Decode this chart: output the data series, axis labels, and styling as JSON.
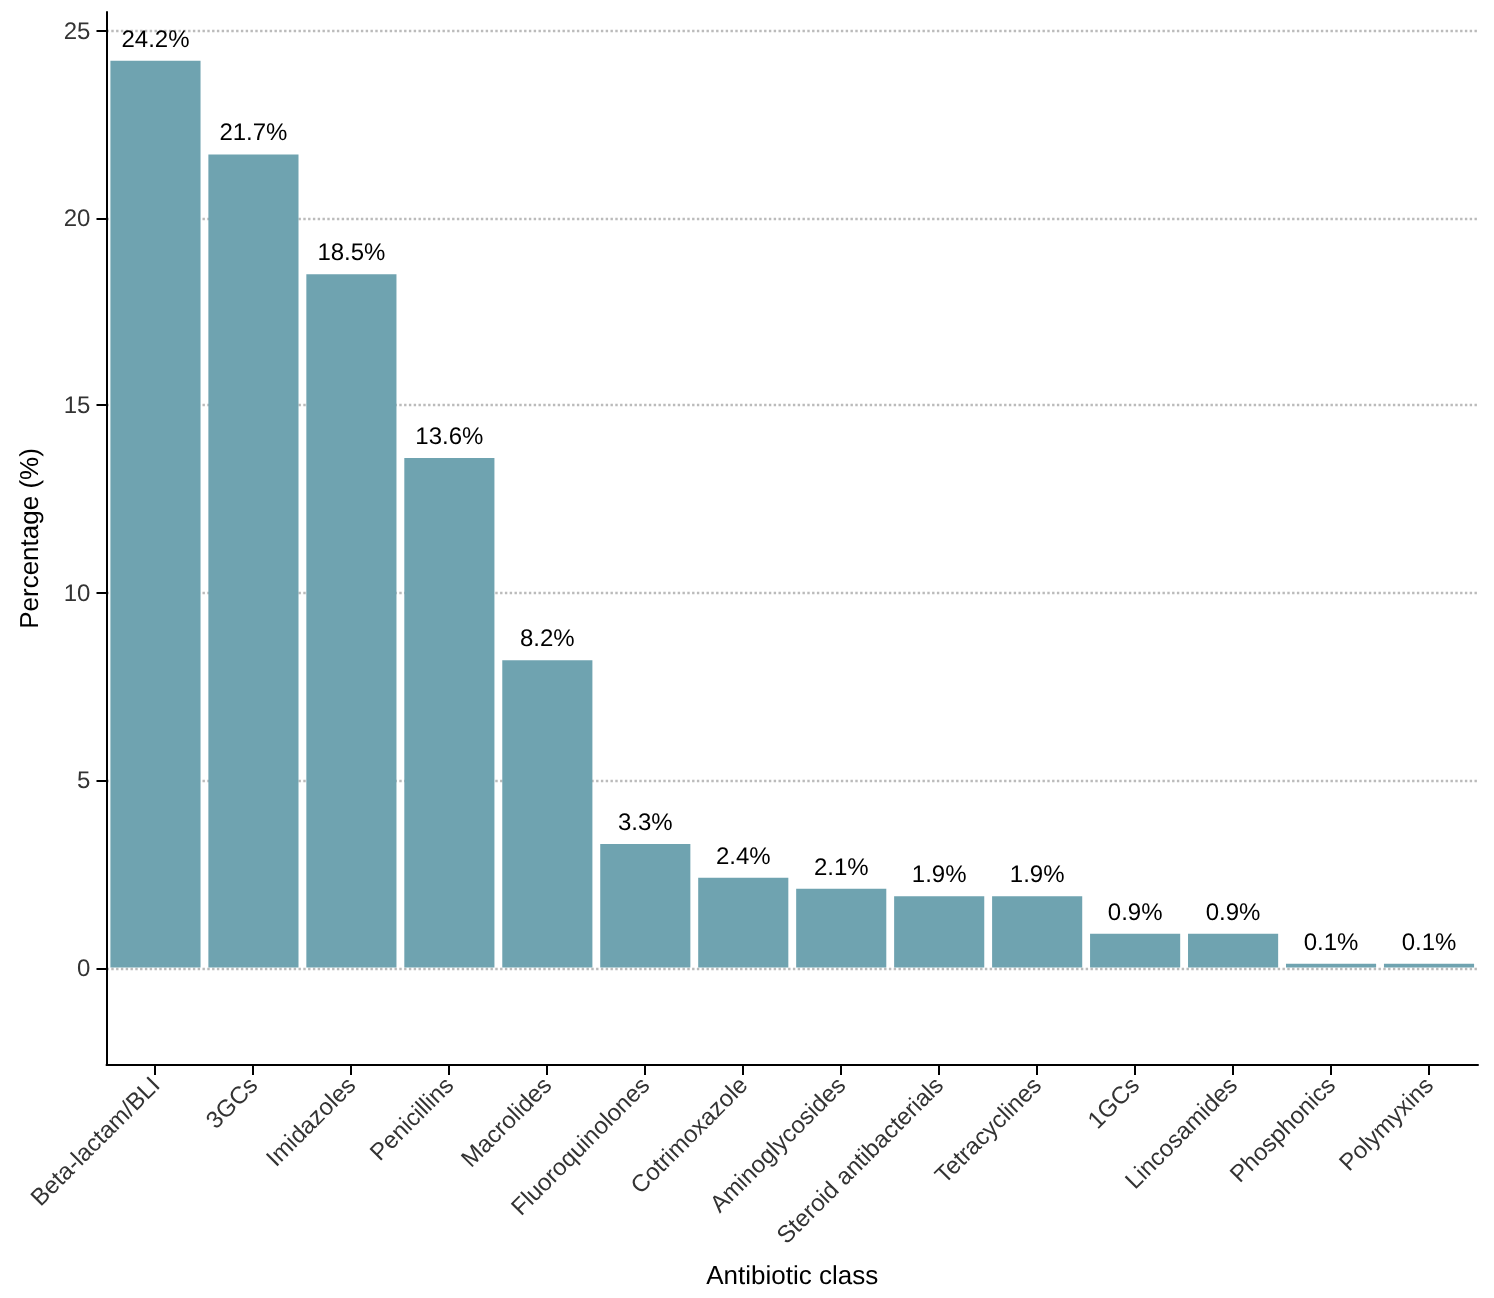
{
  "chart_data": {
    "type": "bar",
    "xlabel": "Antibiotic class",
    "ylabel": "Percentage (%)",
    "categories": [
      "Beta-lactam/BLI",
      "3GCs",
      "Imidazoles",
      "Penicillins",
      "Macrolides",
      "Fluoroquinolones",
      "Cotrimoxazole",
      "Aminoglycosides",
      "Steroid antibacterials",
      "Tetracyclines",
      "1GCs",
      "Lincosamides",
      "Phosphonics",
      "Polymyxins"
    ],
    "values": [
      24.2,
      21.7,
      18.5,
      13.6,
      8.2,
      3.3,
      2.4,
      2.1,
      1.9,
      1.9,
      0.9,
      0.9,
      0.1,
      0.1
    ],
    "value_labels": [
      "24.2%",
      "21.7%",
      "18.5%",
      "13.6%",
      "8.2%",
      "3.3%",
      "2.4%",
      "2.1%",
      "1.9%",
      "1.9%",
      "0.9%",
      "0.9%",
      "0.1%",
      "0.1%"
    ],
    "color": "#6fa3b0",
    "ylim": [
      -2.6,
      25.5
    ],
    "yticks": [
      0,
      5,
      10,
      15,
      20,
      25
    ],
    "grid": "y"
  }
}
